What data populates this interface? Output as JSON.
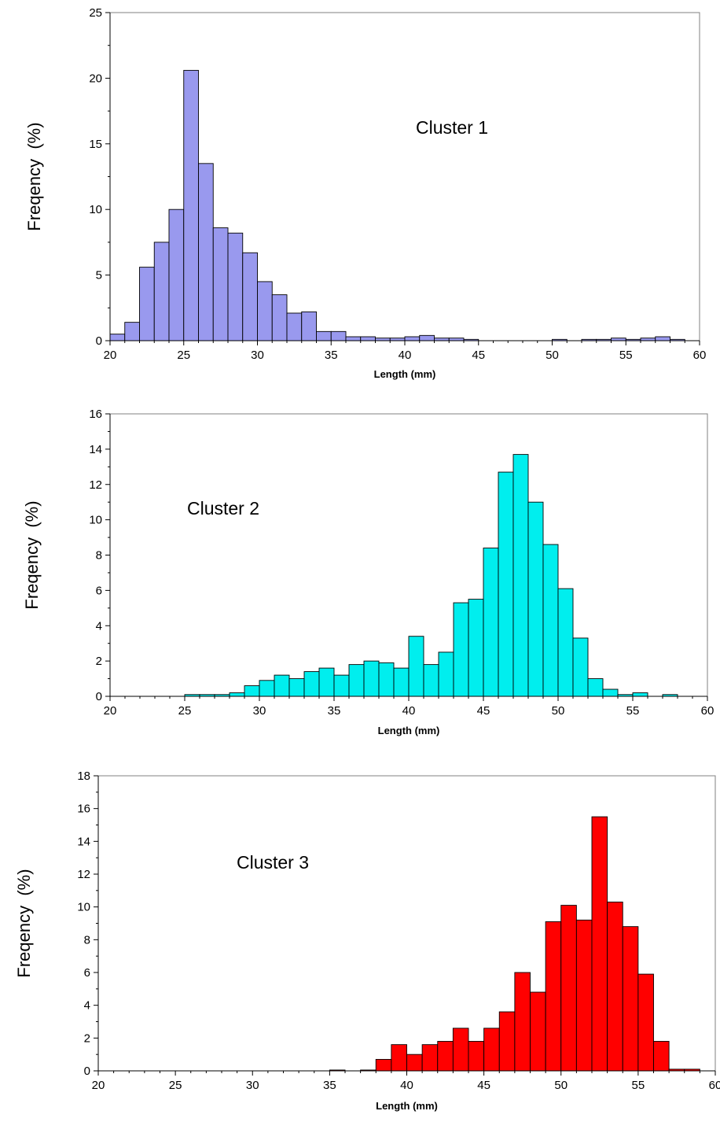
{
  "chart_data": [
    {
      "type": "bar",
      "annotation": "Cluster 1",
      "xlabel": "Length (mm)",
      "ylabel": "Freqency  (%)",
      "xlim": [
        20,
        60
      ],
      "ylim": [
        0,
        25
      ],
      "xticks": [
        20,
        25,
        30,
        35,
        40,
        45,
        50,
        55,
        60
      ],
      "yticks": [
        0,
        5,
        10,
        15,
        20,
        25
      ],
      "bar_color": "#9999ee",
      "bin_width": 1,
      "bin_start": 20,
      "values": [
        0.5,
        1.4,
        5.6,
        7.5,
        10.0,
        20.6,
        13.5,
        8.6,
        8.2,
        6.7,
        4.5,
        3.5,
        2.1,
        2.2,
        0.7,
        0.7,
        0.3,
        0.3,
        0.2,
        0.2,
        0.3,
        0.4,
        0.2,
        0.2,
        0.1,
        0,
        0,
        0,
        0,
        0,
        0.1,
        0,
        0.1,
        0.1,
        0.2,
        0.1,
        0.2,
        0.3,
        0.1,
        0
      ]
    },
    {
      "type": "bar",
      "annotation": "Cluster 2",
      "xlabel": "Length (mm)",
      "ylabel": "Freqency  (%)",
      "xlim": [
        20,
        60
      ],
      "ylim": [
        0,
        16
      ],
      "xticks": [
        20,
        25,
        30,
        35,
        40,
        45,
        50,
        55,
        60
      ],
      "yticks": [
        0,
        2,
        4,
        6,
        8,
        10,
        12,
        14,
        16
      ],
      "bar_color": "#00eeee",
      "bin_width": 1,
      "bin_start": 20,
      "values": [
        0,
        0,
        0,
        0,
        0,
        0.1,
        0.1,
        0.1,
        0.2,
        0.6,
        0.9,
        1.2,
        1.0,
        1.4,
        1.6,
        1.2,
        1.8,
        2.0,
        1.9,
        1.6,
        3.4,
        1.8,
        2.5,
        5.3,
        5.5,
        8.4,
        12.7,
        13.7,
        11.0,
        8.6,
        6.1,
        3.3,
        1.0,
        0.4,
        0.1,
        0.2,
        0,
        0.1,
        0,
        0
      ]
    },
    {
      "type": "bar",
      "annotation": "Cluster 3",
      "xlabel": "Length (mm)",
      "ylabel": "Freqency  (%)",
      "xlim": [
        20,
        60
      ],
      "ylim": [
        0,
        18
      ],
      "xticks": [
        20,
        25,
        30,
        35,
        40,
        45,
        50,
        55,
        60
      ],
      "yticks": [
        0,
        2,
        4,
        6,
        8,
        10,
        12,
        14,
        16,
        18
      ],
      "bar_color": "#ff0000",
      "bin_width": 1,
      "bin_start": 20,
      "values": [
        0,
        0,
        0,
        0,
        0,
        0,
        0,
        0,
        0,
        0,
        0,
        0,
        0,
        0,
        0,
        0.05,
        0,
        0.05,
        0.7,
        1.6,
        1.0,
        1.6,
        1.8,
        2.6,
        1.8,
        2.6,
        3.6,
        6.0,
        4.8,
        9.1,
        10.1,
        9.2,
        15.5,
        10.3,
        8.8,
        5.9,
        1.8,
        0.1,
        0.1,
        0,
        0.05
      ]
    }
  ]
}
